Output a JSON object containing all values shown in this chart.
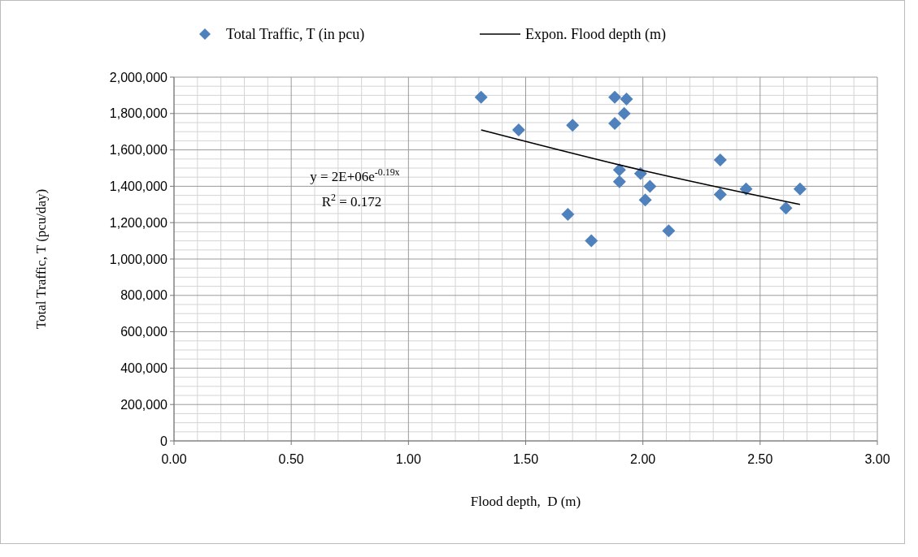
{
  "chart_data": {
    "type": "scatter",
    "xlabel": "Flood depth,  D (m)",
    "ylabel": "Total Traffic, T (pcu/day)",
    "xlim": [
      0,
      3
    ],
    "ylim": [
      0,
      2000000
    ],
    "xticks": [
      {
        "value": 0,
        "label": "0.00"
      },
      {
        "value": 0.5,
        "label": "0.50"
      },
      {
        "value": 1,
        "label": "1.00"
      },
      {
        "value": 1.5,
        "label": "1.50"
      },
      {
        "value": 2,
        "label": "2.00"
      },
      {
        "value": 2.5,
        "label": "2.50"
      },
      {
        "value": 3,
        "label": "3.00"
      }
    ],
    "yticks": [
      0,
      {
        "value": 200000,
        "label": "200,000"
      },
      {
        "value": 400000,
        "label": "400,000"
      },
      {
        "value": 600000,
        "label": "600,000"
      },
      {
        "value": 800000,
        "label": "800,000"
      },
      {
        "value": 1000000,
        "label": "1,000,000"
      },
      {
        "value": 1200000,
        "label": "1,200,000"
      },
      {
        "value": 1400000,
        "label": "1,400,000"
      },
      {
        "value": 1600000,
        "label": "1,600,000"
      },
      {
        "value": 1800000,
        "label": "1,800,000"
      },
      {
        "value": 2000000,
        "label": "2,000,000"
      }
    ],
    "grid": true,
    "legend": "top",
    "marker": "diamond",
    "annotations": [
      "y = 2E+06e$^{-0.19x}$",
      "R$^{2}$ = 0.172"
    ],
    "series": [
      {
        "name": "Total Traffic, T (in pcu)",
        "color": "#4f81bd",
        "x": [
          1.31,
          1.47,
          1.7,
          1.88,
          1.93,
          1.92,
          1.88,
          1.9,
          1.9,
          1.99,
          2.03,
          2.01,
          1.68,
          1.78,
          2.11,
          2.33,
          2.33,
          2.44,
          2.61,
          2.67
        ],
        "values": [
          1890000,
          1710000,
          1735000,
          1890000,
          1880000,
          1800000,
          1745000,
          1490000,
          1425000,
          1470000,
          1400000,
          1325000,
          1245000,
          1100000,
          1155000,
          1545000,
          1355000,
          1385000,
          1280000,
          1385000
        ]
      },
      {
        "name": "Expon. Flood depth (m)",
        "type": "line",
        "color": "#000000",
        "marker": "none",
        "x": [
          1.31,
          1.99,
          2.67
        ],
        "values": [
          1710000,
          1490000,
          1300000
        ]
      }
    ]
  }
}
